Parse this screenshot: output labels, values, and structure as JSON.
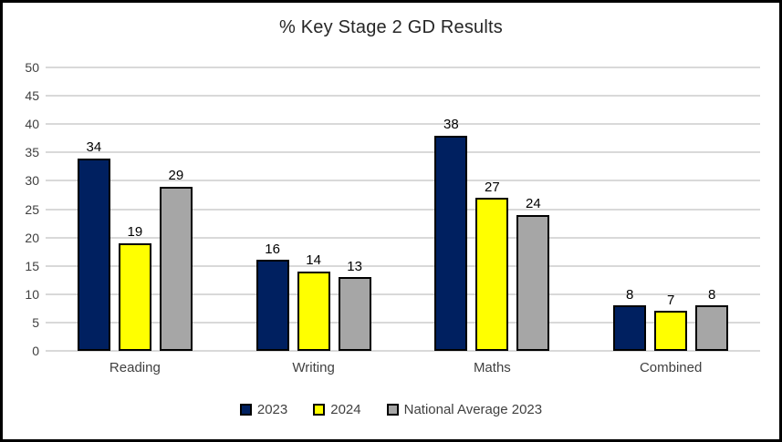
{
  "chart_data": {
    "type": "bar",
    "title": "% Key Stage 2 GD Results",
    "categories": [
      "Reading",
      "Writing",
      "Maths",
      "Combined"
    ],
    "series": [
      {
        "name": "2023",
        "color": "#002060",
        "values": [
          34,
          16,
          38,
          8
        ]
      },
      {
        "name": "2024",
        "color": "#ffff00",
        "values": [
          19,
          14,
          27,
          7
        ]
      },
      {
        "name": "National Average 2023",
        "color": "#a6a6a6",
        "values": [
          29,
          13,
          24,
          8
        ]
      }
    ],
    "xlabel": "",
    "ylabel": "",
    "ylim": [
      0,
      50
    ],
    "yticks": [
      0,
      5,
      10,
      15,
      20,
      25,
      30,
      35,
      40,
      45,
      50
    ],
    "grid": true,
    "data_labels": true,
    "legend_position": "bottom",
    "colors": {
      "gridline": "#d9d9d9",
      "bar_border": "#000000",
      "axis_text": "#404040",
      "title_text": "#262626",
      "frame_border": "#000000",
      "background": "#ffffff"
    }
  }
}
